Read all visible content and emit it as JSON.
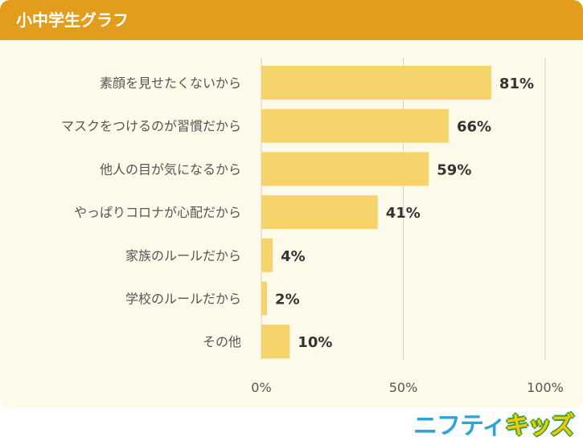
{
  "header": {
    "title": "小中学生グラフ"
  },
  "brand": {
    "logo_text": "ニフティキッズ"
  },
  "colors": {
    "header_bg": "#e29d1c",
    "panel_bg": "#fdfaea",
    "bar": "#f7d46b",
    "grid": "#d4d4d4"
  },
  "chart_data": {
    "type": "bar",
    "orientation": "horizontal",
    "title": "小中学生グラフ",
    "categories": [
      "素顔を見せたくないから",
      "マスクをつけるのが習慣だから",
      "他人の目が気になるから",
      "やっぱりコロナが心配だから",
      "家族のルールだから",
      "学校のルールだから",
      "その他"
    ],
    "values": [
      81,
      66,
      59,
      41,
      4,
      2,
      10
    ],
    "value_labels": [
      "81%",
      "66%",
      "59%",
      "41%",
      "4%",
      "2%",
      "10%"
    ],
    "xlim": [
      0,
      100
    ],
    "xticks": [
      0,
      50,
      100
    ],
    "xtick_labels": [
      "0%",
      "50%",
      "100%"
    ],
    "grid": true,
    "legend": "none"
  }
}
